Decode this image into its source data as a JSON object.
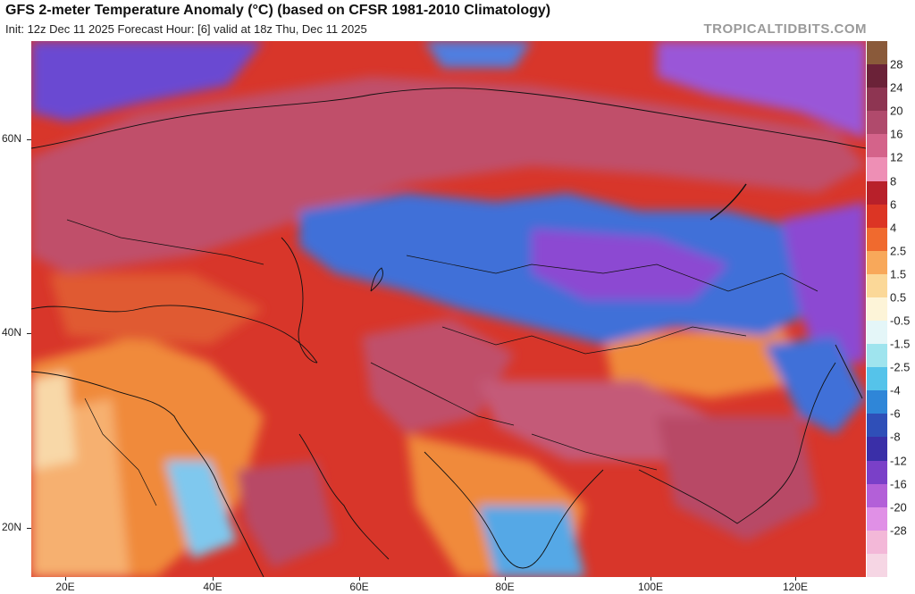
{
  "header": {
    "title": "GFS 2-meter Temperature Anomaly (°C) (based on CFSR 1981-2010 Climatology)",
    "subtitle": "Init: 12z Dec 11 2025   Forecast Hour: [6]   valid at 18z Thu, Dec 11 2025",
    "credit": "TROPICALTIDBITS.COM"
  },
  "axes": {
    "lat_labels": [
      "60N",
      "40N",
      "20N"
    ],
    "lon_labels": [
      "20E",
      "40E",
      "60E",
      "80E",
      "100E",
      "120E"
    ]
  },
  "colorbar": {
    "labels": [
      "28",
      "24",
      "20",
      "16",
      "12",
      "8",
      "6",
      "4",
      "2.5",
      "1.5",
      "0.5",
      "-0.5",
      "-1.5",
      "-2.5",
      "-4",
      "-6",
      "-8",
      "-12",
      "-16",
      "-20",
      "-28"
    ],
    "colors": [
      "#8a5a3a",
      "#6b2238",
      "#8e3552",
      "#b04a6c",
      "#d4638a",
      "#ee8fb5",
      "#b8202a",
      "#dc3524",
      "#f06a2e",
      "#f8a85a",
      "#fbd898",
      "#fdf4d8",
      "#e4f6f8",
      "#9fe4ee",
      "#55c3ea",
      "#2f86d8",
      "#2f4fb8",
      "#3a2fa8",
      "#7a40c8",
      "#b360d8",
      "#e090e6",
      "#f3b8d8",
      "#f6d6e4"
    ]
  },
  "map_colors": {
    "warm_pink": "#c0506b",
    "warm_red": "#d8362a",
    "warm_orange": "#f08a3a",
    "cool_blue": "#3f6fd8",
    "cold_purple": "#8c4ad2",
    "land_line": "#111111"
  }
}
